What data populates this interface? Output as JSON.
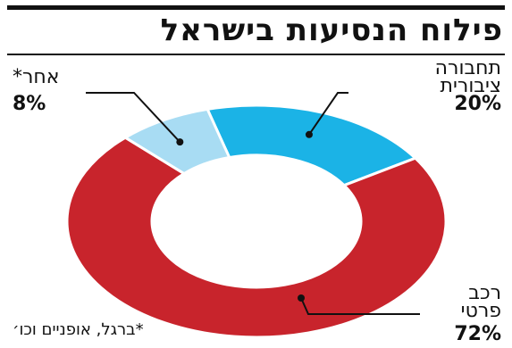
{
  "title": "פילוח הנסיעות בישראל",
  "footnote": "*ברגל, אופניים וכו׳",
  "colors": {
    "public_transport": "#1bb3e6",
    "other": "#a8dcf3",
    "private_car": "#c8242c",
    "text": "#111111"
  },
  "chart_data": {
    "type": "pie",
    "donut": true,
    "title": "פילוח הנסיעות בישראל",
    "slices": [
      {
        "label_lines": [
          "תחבורה",
          "ציבורית"
        ],
        "value": 20,
        "value_label": "20%",
        "color": "#1bb3e6"
      },
      {
        "label_lines": [
          "רכב",
          "פרטי"
        ],
        "value": 72,
        "value_label": "72%",
        "color": "#c8242c"
      },
      {
        "label_lines": [
          "אחר*"
        ],
        "value": 8,
        "value_label": "8%",
        "color": "#a8dcf3"
      }
    ]
  }
}
